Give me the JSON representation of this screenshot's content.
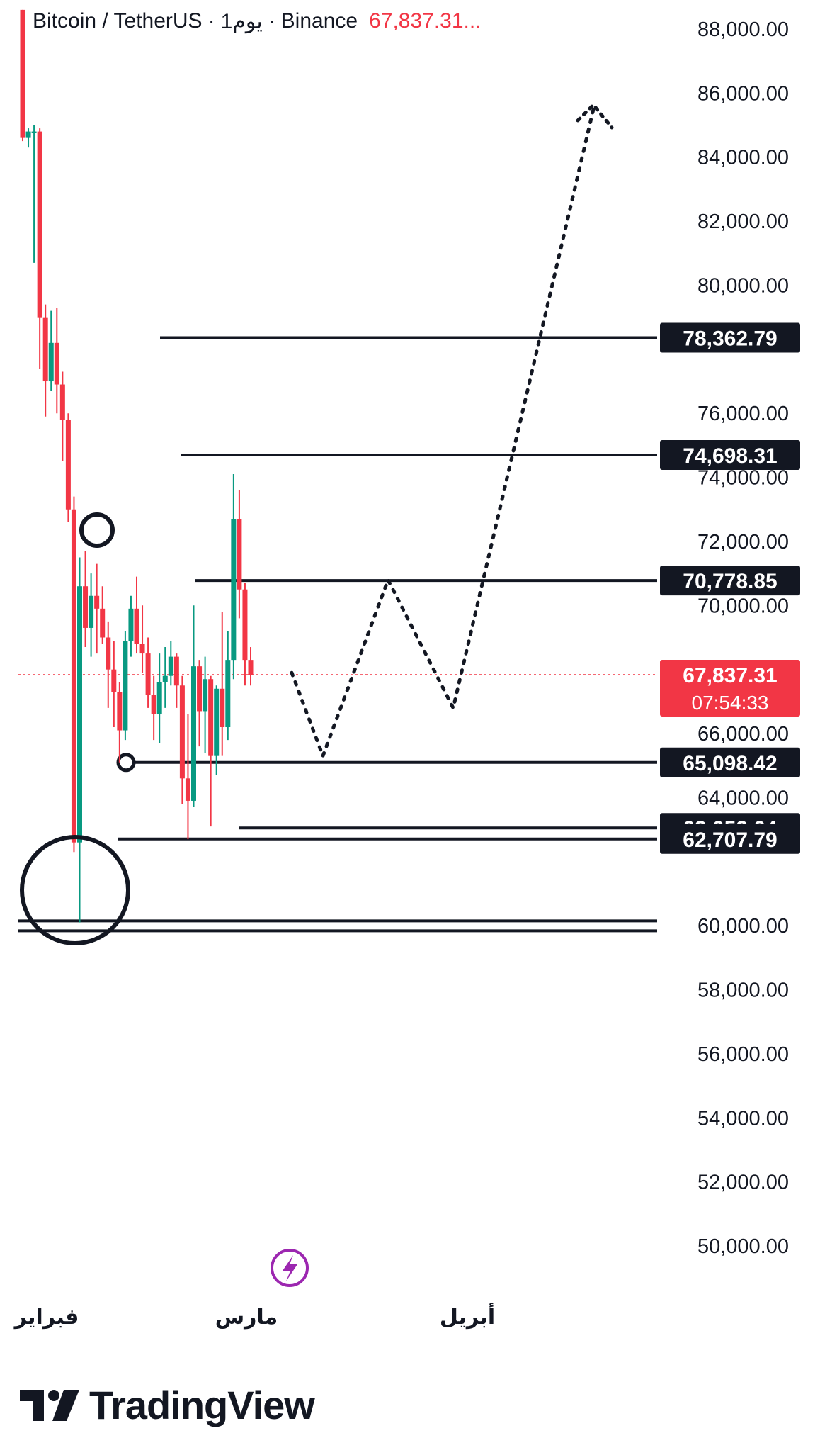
{
  "header": {
    "symbol": "Bitcoin / TetherUS",
    "separator_1": "·",
    "interval": "1يوم",
    "separator_2": "·",
    "exchange": "Binance",
    "price": "67,837.31..."
  },
  "price_axis_ticks": [
    "88,000.00",
    "86,000.00",
    "84,000.00",
    "82,000.00",
    "80,000.00",
    "76,000.00",
    "74,000.00",
    "72,000.00",
    "70,000.00",
    "66,000.00",
    "64,000.00",
    "60,000.00",
    "58,000.00",
    "56,000.00",
    "54,000.00",
    "52,000.00",
    "50,000.00"
  ],
  "time_axis_labels": [
    "فبراير",
    "مارس",
    "أبريل"
  ],
  "current_price_label": {
    "price": "67,837.31",
    "countdown": "07:54:33"
  },
  "brand": {
    "name": "TradingView"
  },
  "colors": {
    "up": "#089981",
    "down": "#f23645",
    "line": "#131722",
    "accent": "#9c27b0",
    "background": "#ffffff"
  },
  "chart_data": {
    "type": "candlestick",
    "ylim": [
      49000,
      88600
    ],
    "grid": false,
    "candles": [
      {
        "o": 88600,
        "h": 88600,
        "l": 84500,
        "c": 84600
      },
      {
        "o": 84600,
        "h": 84900,
        "l": 84300,
        "c": 84800
      },
      {
        "o": 84800,
        "h": 85000,
        "l": 80700,
        "c": 84800
      },
      {
        "o": 84800,
        "h": 84900,
        "l": 77400,
        "c": 79000
      },
      {
        "o": 79000,
        "h": 79400,
        "l": 75900,
        "c": 77000
      },
      {
        "o": 77000,
        "h": 79200,
        "l": 76700,
        "c": 78200
      },
      {
        "o": 78200,
        "h": 79300,
        "l": 76000,
        "c": 76900
      },
      {
        "o": 76900,
        "h": 77300,
        "l": 74500,
        "c": 75800
      },
      {
        "o": 75800,
        "h": 76000,
        "l": 72600,
        "c": 73000
      },
      {
        "o": 73000,
        "h": 73400,
        "l": 62300,
        "c": 62600
      },
      {
        "o": 62600,
        "h": 71500,
        "l": 60100,
        "c": 70600
      },
      {
        "o": 70600,
        "h": 71700,
        "l": 68700,
        "c": 69300
      },
      {
        "o": 69300,
        "h": 71000,
        "l": 68400,
        "c": 70300
      },
      {
        "o": 70300,
        "h": 71300,
        "l": 68500,
        "c": 69900
      },
      {
        "o": 69900,
        "h": 70600,
        "l": 68800,
        "c": 69000
      },
      {
        "o": 69000,
        "h": 69500,
        "l": 66800,
        "c": 68000
      },
      {
        "o": 68000,
        "h": 68900,
        "l": 66200,
        "c": 67300
      },
      {
        "o": 67300,
        "h": 67600,
        "l": 65100,
        "c": 66100
      },
      {
        "o": 66100,
        "h": 69200,
        "l": 65800,
        "c": 68900
      },
      {
        "o": 68900,
        "h": 70300,
        "l": 68400,
        "c": 69900
      },
      {
        "o": 69900,
        "h": 70900,
        "l": 68500,
        "c": 68800
      },
      {
        "o": 68800,
        "h": 70000,
        "l": 67900,
        "c": 68500
      },
      {
        "o": 68500,
        "h": 69000,
        "l": 66800,
        "c": 67200
      },
      {
        "o": 67200,
        "h": 67800,
        "l": 65800,
        "c": 66600
      },
      {
        "o": 66600,
        "h": 68500,
        "l": 65700,
        "c": 67600
      },
      {
        "o": 67600,
        "h": 68700,
        "l": 66800,
        "c": 67800
      },
      {
        "o": 67800,
        "h": 68900,
        "l": 67500,
        "c": 68400
      },
      {
        "o": 68400,
        "h": 68500,
        "l": 66800,
        "c": 67500
      },
      {
        "o": 67500,
        "h": 67800,
        "l": 63800,
        "c": 64600
      },
      {
        "o": 64600,
        "h": 66600,
        "l": 62700,
        "c": 63900
      },
      {
        "o": 63900,
        "h": 70000,
        "l": 63700,
        "c": 68100
      },
      {
        "o": 68100,
        "h": 68300,
        "l": 65600,
        "c": 66700
      },
      {
        "o": 66700,
        "h": 68400,
        "l": 65400,
        "c": 67700
      },
      {
        "o": 67700,
        "h": 67800,
        "l": 63100,
        "c": 65300
      },
      {
        "o": 65300,
        "h": 67500,
        "l": 64700,
        "c": 67400
      },
      {
        "o": 67400,
        "h": 69800,
        "l": 65300,
        "c": 66200
      },
      {
        "o": 66200,
        "h": 69200,
        "l": 65800,
        "c": 68300
      },
      {
        "o": 68300,
        "h": 74100,
        "l": 67700,
        "c": 72700
      },
      {
        "o": 72700,
        "h": 73600,
        "l": 69600,
        "c": 70500
      },
      {
        "o": 70500,
        "h": 70700,
        "l": 67500,
        "c": 68300
      },
      {
        "o": 68300,
        "h": 68700,
        "l": 67500,
        "c": 67837.31
      }
    ],
    "levels": [
      78362.79,
      74698.31,
      70778.85,
      65098.42,
      63053.04,
      62707.79
    ],
    "support_lines": [
      60150,
      59840
    ],
    "current_price": 67837.31,
    "projection": [
      67900,
      65300,
      70800,
      66800,
      85500
    ]
  }
}
